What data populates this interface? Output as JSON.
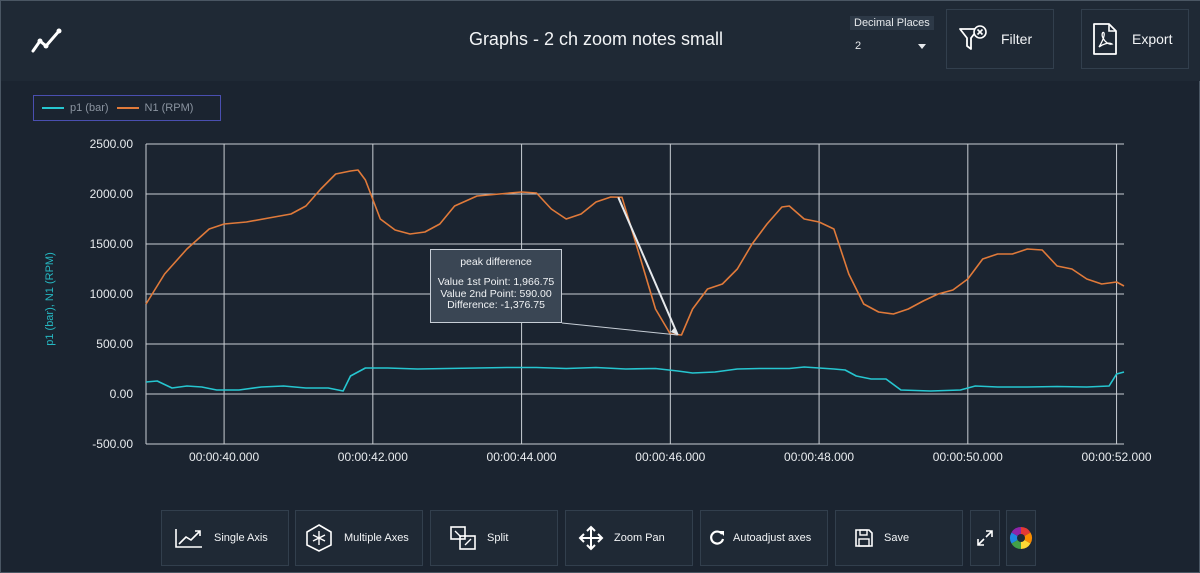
{
  "header": {
    "title": "Graphs - 2 ch zoom notes small",
    "decimal_places_label": "Decimal Places",
    "decimal_places_value": "2",
    "filter_label": "Filter",
    "export_label": "Export",
    "logo_icon": "line-chart-icon"
  },
  "legend": {
    "items": [
      {
        "label": "p1 (bar)",
        "color": "#26c6d0"
      },
      {
        "label": "N1 (RPM)",
        "color": "#e07a3a"
      }
    ]
  },
  "chart_data": {
    "type": "line",
    "ylabel": "p1 (bar), N1 (RPM)",
    "ylim": [
      -500,
      2500
    ],
    "y_ticks": [
      "2500.00",
      "2000.00",
      "1500.00",
      "1000.00",
      "500.00",
      "0.00",
      "-500.00"
    ],
    "y_tick_values": [
      2500,
      2000,
      1500,
      1000,
      500,
      0,
      -500
    ],
    "xlim": [
      38.95,
      52.1
    ],
    "x_ticks": [
      "00:00:40.000",
      "00:00:42.000",
      "00:00:44.000",
      "00:00:46.000",
      "00:00:48.000",
      "00:00:50.000",
      "00:00:52.000"
    ],
    "x_tick_values": [
      40,
      42,
      44,
      46,
      48,
      50,
      52
    ],
    "grid": true,
    "series": [
      {
        "name": "N1 (RPM)",
        "color": "#e07a3a",
        "x": [
          38.95,
          39.2,
          39.5,
          39.8,
          40.0,
          40.3,
          40.6,
          40.9,
          41.1,
          41.3,
          41.5,
          41.7,
          41.8,
          41.9,
          42.1,
          42.3,
          42.5,
          42.7,
          42.9,
          43.1,
          43.4,
          43.7,
          44.0,
          44.2,
          44.4,
          44.6,
          44.8,
          45.0,
          45.2,
          45.35,
          45.6,
          45.8,
          46.0,
          46.15,
          46.3,
          46.5,
          46.7,
          46.9,
          47.1,
          47.3,
          47.5,
          47.6,
          47.8,
          48.0,
          48.2,
          48.4,
          48.6,
          48.8,
          49.0,
          49.2,
          49.4,
          49.6,
          49.8,
          50.0,
          50.2,
          50.4,
          50.6,
          50.8,
          51.0,
          51.2,
          51.4,
          51.6,
          51.8,
          52.0,
          52.1
        ],
        "values": [
          900,
          1200,
          1450,
          1650,
          1700,
          1720,
          1760,
          1800,
          1880,
          2050,
          2200,
          2230,
          2240,
          2140,
          1750,
          1640,
          1600,
          1620,
          1700,
          1880,
          1980,
          2000,
          2020,
          2010,
          1850,
          1750,
          1800,
          1920,
          1970,
          1967,
          1350,
          850,
          600,
          590,
          850,
          1050,
          1100,
          1250,
          1500,
          1700,
          1870,
          1880,
          1750,
          1720,
          1650,
          1200,
          900,
          820,
          800,
          850,
          930,
          1000,
          1040,
          1150,
          1350,
          1400,
          1400,
          1450,
          1440,
          1280,
          1250,
          1150,
          1100,
          1120,
          1080
        ]
      },
      {
        "name": "p1 (bar)",
        "color": "#26c6d0",
        "x": [
          38.95,
          39.1,
          39.3,
          39.5,
          39.7,
          39.9,
          40.2,
          40.5,
          40.8,
          41.1,
          41.4,
          41.6,
          41.7,
          41.9,
          42.2,
          42.6,
          43.0,
          43.4,
          43.8,
          44.2,
          44.6,
          45.0,
          45.4,
          45.8,
          46.1,
          46.3,
          46.6,
          46.9,
          47.2,
          47.6,
          47.8,
          48.0,
          48.2,
          48.35,
          48.5,
          48.7,
          48.9,
          49.1,
          49.5,
          49.9,
          50.1,
          50.4,
          50.8,
          51.2,
          51.6,
          51.9,
          52.0,
          52.1
        ],
        "values": [
          120,
          130,
          60,
          80,
          70,
          40,
          40,
          70,
          80,
          60,
          60,
          30,
          180,
          260,
          260,
          250,
          255,
          260,
          265,
          265,
          255,
          265,
          250,
          255,
          230,
          210,
          220,
          250,
          255,
          255,
          270,
          260,
          250,
          240,
          180,
          150,
          150,
          40,
          30,
          40,
          80,
          70,
          70,
          75,
          70,
          80,
          200,
          220
        ]
      }
    ],
    "annotation": {
      "title": "peak difference",
      "lines": [
        "Value 1st Point: 1,966.75",
        "Value 2nd Point: 590.00",
        "Difference: -1,376.75"
      ],
      "point1": {
        "x": 45.3,
        "y": 1966.75
      },
      "point2": {
        "x": 46.1,
        "y": 590
      }
    }
  },
  "toolbar": {
    "buttons": [
      {
        "label": "Single Axis",
        "icon": "single-axis-icon"
      },
      {
        "label": "Multiple Axes",
        "icon": "multiple-axes-icon"
      },
      {
        "label": "Split",
        "icon": "split-icon"
      },
      {
        "label": "Zoom Pan",
        "icon": "zoom-pan-icon"
      },
      {
        "label": "Autoadjust axes",
        "icon": "autoadjust-icon"
      },
      {
        "label": "Save",
        "icon": "save-icon"
      },
      {
        "label": "",
        "icon": "fullscreen-icon"
      },
      {
        "label": "",
        "icon": "color-wheel-icon"
      }
    ]
  }
}
